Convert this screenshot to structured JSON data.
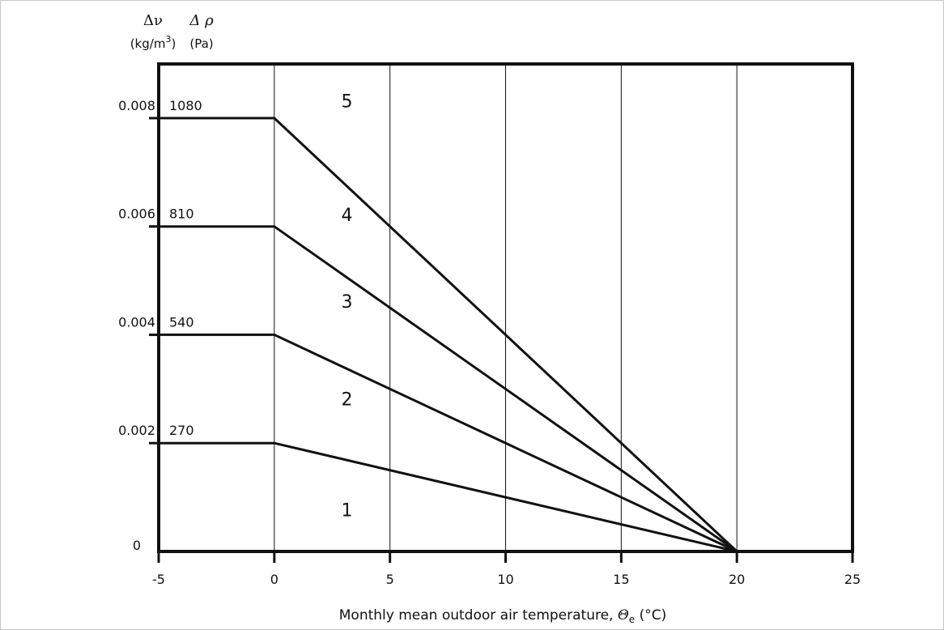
{
  "chart_data": {
    "type": "line",
    "xlabel": "Monthly mean outdoor air temperature, ",
    "xlabel_symbol": "Θ",
    "xlabel_subscript": "e",
    "xlabel_unit": " (°C)",
    "y_axis_labels": [
      {
        "symbol": "Δν",
        "unit": "(kg/m",
        "unit_sup": "3",
        "unit_close": ")"
      },
      {
        "symbol": "Δ ρ",
        "unit": "(Pa)"
      }
    ],
    "xlim": [
      -5,
      25
    ],
    "ylim": [
      0,
      0.009
    ],
    "x_ticks": [
      "-5",
      "0",
      "5",
      "10",
      "15",
      "20",
      "25"
    ],
    "y_ticks": [
      {
        "value": 0,
        "label": "0",
        "pa_label": ""
      },
      {
        "value": 0.002,
        "label": "0.002",
        "pa_label": "270"
      },
      {
        "value": 0.004,
        "label": "0.004",
        "pa_label": "540"
      },
      {
        "value": 0.006,
        "label": "0.006",
        "pa_label": "810"
      },
      {
        "value": 0.008,
        "label": "0.008",
        "pa_label": "1080"
      }
    ],
    "grid_x": [
      0,
      5,
      10,
      15,
      20
    ],
    "series": [
      {
        "points": [
          [
            -5,
            0.002
          ],
          [
            0,
            0.002
          ],
          [
            20,
            0
          ]
        ]
      },
      {
        "points": [
          [
            -5,
            0.004
          ],
          [
            0,
            0.004
          ],
          [
            20,
            0
          ]
        ]
      },
      {
        "points": [
          [
            -5,
            0.006
          ],
          [
            0,
            0.006
          ],
          [
            20,
            0
          ]
        ]
      },
      {
        "points": [
          [
            -5,
            0.008
          ],
          [
            0,
            0.008
          ],
          [
            20,
            0
          ]
        ]
      }
    ],
    "zone_labels": [
      {
        "text": "1",
        "x": 3,
        "y": 0.00065
      },
      {
        "text": "2",
        "x": 3,
        "y": 0.0027
      },
      {
        "text": "3",
        "x": 3,
        "y": 0.0045
      },
      {
        "text": "4",
        "x": 3,
        "y": 0.0061
      },
      {
        "text": "5",
        "x": 3,
        "y": 0.0082
      }
    ]
  }
}
